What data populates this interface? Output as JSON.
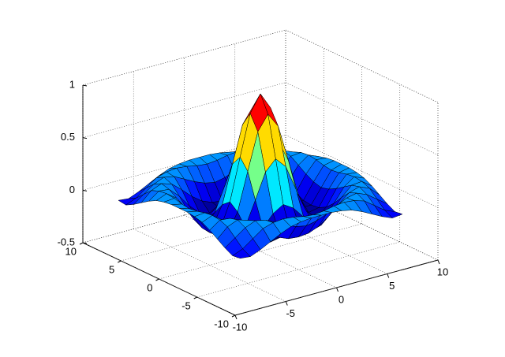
{
  "chart_data": {
    "type": "surface",
    "x": [
      -8,
      -7,
      -6,
      -5,
      -4,
      -3,
      -2,
      -1,
      0,
      1,
      2,
      3,
      4,
      5,
      6,
      7,
      8
    ],
    "y": [
      -8,
      -7,
      -6,
      -5,
      -4,
      -3,
      -2,
      -1,
      0,
      1,
      2,
      3,
      4,
      5,
      6,
      7,
      8
    ],
    "z": [
      [
        -0.08,
        -0.09,
        -0.05,
        0,
        0.05,
        0.09,
        0.11,
        0.12,
        0.12,
        0.12,
        0.11,
        0.09,
        0.05,
        0,
        -0.05,
        -0.09,
        -0.08
      ],
      [
        -0.09,
        -0.05,
        0.02,
        0.09,
        0.12,
        0.13,
        0.12,
        0.1,
        0.09,
        0.1,
        0.12,
        0.13,
        0.12,
        0.09,
        0.02,
        -0.05,
        -0.09
      ],
      [
        -0.05,
        0.02,
        0.09,
        0.13,
        0.11,
        0.06,
        0.01,
        -0.03,
        -0.05,
        -0.03,
        0.01,
        0.06,
        0.11,
        0.13,
        0.09,
        0.02,
        -0.05
      ],
      [
        0,
        0.09,
        0.13,
        0.1,
        0.02,
        -0.07,
        -0.14,
        -0.18,
        -0.19,
        -0.18,
        -0.14,
        -0.07,
        0.02,
        0.1,
        0.13,
        0.09,
        0
      ],
      [
        0.05,
        0.12,
        0.11,
        0.02,
        -0.1,
        -0.19,
        -0.22,
        -0.2,
        -0.19,
        -0.2,
        -0.22,
        -0.19,
        -0.1,
        0.02,
        0.11,
        0.12,
        0.05
      ],
      [
        0.09,
        0.13,
        0.06,
        -0.07,
        -0.19,
        -0.21,
        -0.12,
        -0.01,
        0.05,
        -0.01,
        -0.12,
        -0.21,
        -0.19,
        -0.07,
        0.06,
        0.13,
        0.09
      ],
      [
        0.11,
        0.12,
        0.01,
        -0.14,
        -0.22,
        -0.12,
        0.11,
        0.35,
        0.45,
        0.35,
        0.11,
        -0.12,
        -0.22,
        -0.14,
        0.01,
        0.12,
        0.11
      ],
      [
        0.12,
        0.1,
        -0.03,
        -0.18,
        -0.2,
        -0.01,
        0.35,
        0.7,
        0.84,
        0.7,
        0.35,
        -0.01,
        -0.2,
        -0.18,
        -0.03,
        0.1,
        0.12
      ],
      [
        0.12,
        0.09,
        -0.05,
        -0.19,
        -0.19,
        0.05,
        0.45,
        0.84,
        1,
        0.84,
        0.45,
        0.05,
        -0.19,
        -0.19,
        -0.05,
        0.09,
        0.12
      ],
      [
        0.12,
        0.1,
        -0.03,
        -0.18,
        -0.2,
        -0.01,
        0.35,
        0.7,
        0.84,
        0.7,
        0.35,
        -0.01,
        -0.2,
        -0.18,
        -0.03,
        0.1,
        0.12
      ],
      [
        0.11,
        0.12,
        0.01,
        -0.14,
        -0.22,
        -0.12,
        0.11,
        0.35,
        0.45,
        0.35,
        0.11,
        -0.12,
        -0.22,
        -0.14,
        0.01,
        0.12,
        0.11
      ],
      [
        0.09,
        0.13,
        0.06,
        -0.07,
        -0.19,
        -0.21,
        -0.12,
        -0.01,
        0.05,
        -0.01,
        -0.12,
        -0.21,
        -0.19,
        -0.07,
        0.06,
        0.13,
        0.09
      ],
      [
        0.05,
        0.12,
        0.11,
        0.02,
        -0.1,
        -0.19,
        -0.22,
        -0.2,
        -0.19,
        -0.2,
        -0.22,
        -0.19,
        -0.1,
        0.02,
        0.11,
        0.12,
        0.05
      ],
      [
        0,
        0.09,
        0.13,
        0.1,
        0.02,
        -0.07,
        -0.14,
        -0.18,
        -0.19,
        -0.18,
        -0.14,
        -0.07,
        0.02,
        0.1,
        0.13,
        0.09,
        0
      ],
      [
        -0.05,
        0.02,
        0.09,
        0.13,
        0.11,
        0.06,
        0.01,
        -0.03,
        -0.05,
        -0.03,
        0.01,
        0.06,
        0.11,
        0.13,
        0.09,
        0.02,
        -0.05
      ],
      [
        -0.09,
        -0.05,
        0.02,
        0.09,
        0.12,
        0.13,
        0.12,
        0.1,
        0.09,
        0.1,
        0.12,
        0.13,
        0.12,
        0.09,
        0.02,
        -0.05,
        -0.09
      ],
      [
        -0.08,
        -0.09,
        -0.05,
        0,
        0.05,
        0.09,
        0.11,
        0.12,
        0.12,
        0.12,
        0.11,
        0.09,
        0.05,
        0,
        -0.05,
        -0.09,
        -0.08
      ]
    ],
    "colormap": "jet",
    "xlim": [
      -10,
      10
    ],
    "xticks": [
      -10,
      -5,
      0,
      5,
      10
    ],
    "ylim": [
      -10,
      10
    ],
    "yticks": [
      -10,
      -5,
      0,
      5,
      10
    ],
    "zlim": [
      -0.5,
      1
    ],
    "zticks": [
      -0.5,
      0,
      0.5,
      1
    ],
    "grid": true
  }
}
